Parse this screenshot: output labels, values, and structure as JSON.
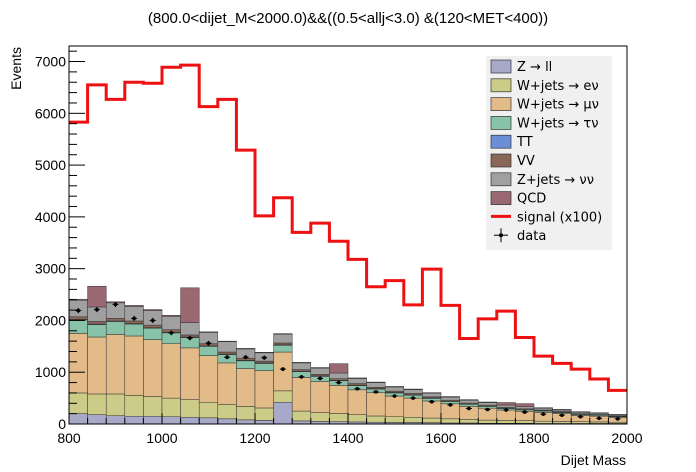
{
  "chart_data": {
    "type": "histogram",
    "title": "(800.0<dijet_M<2000.0)&&((0.5<allj<3.0) &(120<MET<400))",
    "xlabel": "Dijet Mass",
    "ylabel": "Events",
    "xlim": [
      800,
      2000
    ],
    "ylim": [
      0,
      7300
    ],
    "x_ticks": [
      "800",
      "1000",
      "1200",
      "1400",
      "1600",
      "1800",
      "2000"
    ],
    "y_ticks": [
      "0",
      "1000",
      "2000",
      "3000",
      "4000",
      "5000",
      "6000",
      "7000"
    ],
    "bin_edges": [
      800,
      840,
      880,
      920,
      960,
      1000,
      1040,
      1080,
      1120,
      1160,
      1200,
      1240,
      1280,
      1320,
      1360,
      1400,
      1440,
      1480,
      1520,
      1560,
      1600,
      1640,
      1680,
      1720,
      1760,
      1800,
      1840,
      1880,
      1920,
      1960,
      2000
    ],
    "legend_position": "top-right",
    "stack": [
      {
        "name": "Z → ll",
        "color": "#a8a8c8",
        "values": [
          200,
          180,
          160,
          150,
          150,
          140,
          130,
          120,
          100,
          80,
          70,
          420,
          60,
          50,
          45,
          40,
          35,
          30,
          30,
          25,
          20,
          20,
          15,
          15,
          15,
          10,
          10,
          10,
          10,
          10
        ]
      },
      {
        "name": "W+jets → eν",
        "color": "#cccc88",
        "values": [
          400,
          400,
          420,
          400,
          380,
          360,
          340,
          300,
          280,
          260,
          240,
          220,
          190,
          170,
          160,
          140,
          120,
          110,
          100,
          90,
          80,
          70,
          60,
          55,
          50,
          45,
          40,
          35,
          30,
          25
        ]
      },
      {
        "name": "W+jets → μν",
        "color": "#e3bb88",
        "values": [
          1150,
          1100,
          1150,
          1150,
          1100,
          1050,
          1000,
          900,
          800,
          730,
          720,
          750,
          650,
          600,
          540,
          480,
          450,
          400,
          370,
          330,
          290,
          250,
          230,
          200,
          180,
          170,
          150,
          120,
          110,
          90
        ]
      },
      {
        "name": "W+jets → τν",
        "color": "#88c2a8",
        "values": [
          260,
          240,
          250,
          230,
          220,
          210,
          200,
          180,
          160,
          150,
          140,
          130,
          110,
          100,
          90,
          80,
          70,
          60,
          55,
          50,
          45,
          40,
          35,
          30,
          28,
          25,
          22,
          20,
          18,
          15
        ]
      },
      {
        "name": "TT",
        "color": "#6a8fd6",
        "values": [
          10,
          10,
          10,
          10,
          10,
          10,
          10,
          10,
          10,
          10,
          10,
          10,
          10,
          10,
          10,
          10,
          10,
          10,
          10,
          10,
          5,
          5,
          5,
          5,
          5,
          5,
          5,
          5,
          5,
          5
        ]
      },
      {
        "name": "VV",
        "color": "#8a6656",
        "values": [
          50,
          50,
          50,
          50,
          50,
          50,
          40,
          40,
          40,
          40,
          35,
          35,
          30,
          30,
          30,
          30,
          25,
          25,
          25,
          20,
          20,
          20,
          20,
          15,
          15,
          15,
          15,
          10,
          10,
          10
        ]
      },
      {
        "name": "Z+jets → νν",
        "color": "#a0a0a0",
        "values": [
          320,
          280,
          300,
          280,
          280,
          260,
          240,
          220,
          200,
          180,
          160,
          170,
          130,
          120,
          110,
          100,
          90,
          80,
          75,
          70,
          60,
          55,
          50,
          45,
          40,
          35,
          30,
          28,
          25,
          20
        ]
      },
      {
        "name": "QCD",
        "color": "#9a6870",
        "values": [
          20,
          400,
          20,
          20,
          20,
          20,
          670,
          10,
          10,
          10,
          10,
          10,
          10,
          10,
          180,
          10,
          10,
          10,
          10,
          10,
          10,
          10,
          10,
          50,
          60,
          10,
          10,
          10,
          10,
          10
        ]
      }
    ],
    "signal": {
      "name": "signal (x100)",
      "color": "#ee1111",
      "values": [
        5830,
        6550,
        6270,
        6600,
        6580,
        6890,
        6930,
        6130,
        6270,
        5290,
        4020,
        4370,
        3700,
        3880,
        3530,
        3180,
        2650,
        2770,
        2300,
        2990,
        2290,
        1650,
        2030,
        2180,
        1670,
        1310,
        1170,
        1060,
        870,
        650
      ]
    },
    "data": {
      "name": "data",
      "values": [
        2190,
        2210,
        2310,
        2040,
        2000,
        1760,
        1660,
        1560,
        1290,
        1290,
        1280,
        1060,
        910,
        880,
        800,
        680,
        620,
        540,
        500,
        430,
        370,
        300,
        280,
        270,
        230,
        190,
        170,
        140,
        110,
        100
      ]
    },
    "data_errors": [
      50,
      50,
      50,
      50,
      50,
      45,
      45,
      45,
      40,
      40,
      40,
      35,
      35,
      32,
      30,
      28,
      27,
      25,
      24,
      22,
      20,
      18,
      18,
      18,
      16,
      15,
      14,
      12,
      11,
      10
    ]
  }
}
